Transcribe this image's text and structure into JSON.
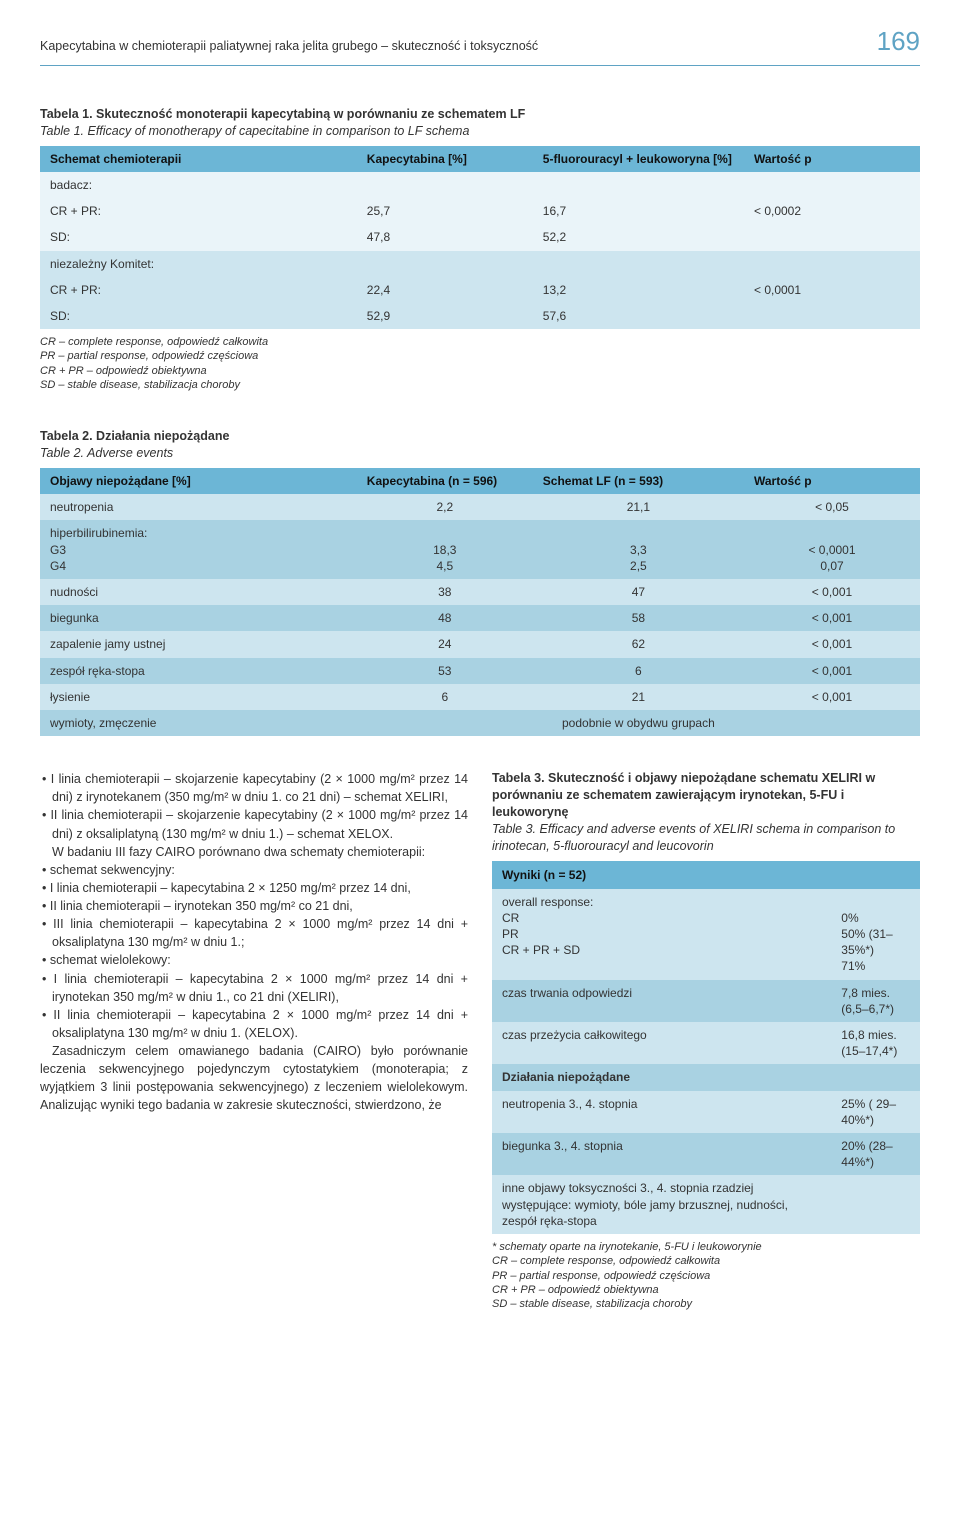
{
  "header": {
    "running_title": "Kapecytabina w chemioterapii paliatywnej raka jelita grubego – skuteczność i toksyczność",
    "page_number": "169"
  },
  "table1": {
    "caption_pl": "Tabela 1. Skuteczność monoterapii kapecytabiną w porównaniu ze schematem LF",
    "caption_en": "Table 1. Efficacy of monotherapy of capecitabine in comparison to LF schema",
    "headers": [
      "Schemat chemioterapii",
      "Kapecytabina [%]",
      "5-fluorouracyl + leukoworyna [%]",
      "Wartość p"
    ],
    "rows": [
      {
        "label": "badacz:",
        "c1": "",
        "c2": "",
        "c3": ""
      },
      {
        "label": "CR + PR:",
        "c1": "25,7",
        "c2": "16,7",
        "c3": "< 0,0002"
      },
      {
        "label": "SD:",
        "c1": "47,8",
        "c2": "52,2",
        "c3": ""
      },
      {
        "label": "niezależny Komitet:",
        "c1": "",
        "c2": "",
        "c3": ""
      },
      {
        "label": "CR + PR:",
        "c1": "22,4",
        "c2": "13,2",
        "c3": "< 0,0001"
      },
      {
        "label": "SD:",
        "c1": "52,9",
        "c2": "57,6",
        "c3": ""
      }
    ],
    "footnotes": [
      "CR – complete response, odpowiedź całkowita",
      "PR – partial response, odpowiedź częściowa",
      "CR + PR – odpowiedź obiektywna",
      "SD – stable disease, stabilizacja choroby"
    ]
  },
  "table2": {
    "caption_pl": "Tabela 2. Działania niepożądane",
    "caption_en": "Table 2. Adverse events",
    "headers": [
      "Objawy niepożądane [%]",
      "Kapecytabina (n = 596)",
      "Schemat LF (n = 593)",
      "Wartość p"
    ],
    "rows": [
      {
        "c0": "neutropenia",
        "c1": "2,2",
        "c2": "21,1",
        "c3": "< 0,05",
        "alt": 0
      },
      {
        "c0": "hiperbilirubinemia:\nG3\nG4",
        "c1": "\n18,3\n4,5",
        "c2": "\n3,3\n2,5",
        "c3": "\n< 0,0001\n0,07",
        "alt": 1
      },
      {
        "c0": "nudności",
        "c1": "38",
        "c2": "47",
        "c3": "< 0,001",
        "alt": 0
      },
      {
        "c0": "biegunka",
        "c1": "48",
        "c2": "58",
        "c3": "< 0,001",
        "alt": 1
      },
      {
        "c0": "zapalenie jamy ustnej",
        "c1": "24",
        "c2": "62",
        "c3": "< 0,001",
        "alt": 0
      },
      {
        "c0": "zespół ręka-stopa",
        "c1": "53",
        "c2": "6",
        "c3": "< 0,001",
        "alt": 1
      },
      {
        "c0": "łysienie",
        "c1": "6",
        "c2": "21",
        "c3": "< 0,001",
        "alt": 0
      },
      {
        "c0": "wymioty, zmęczenie",
        "c1": "podobnie w obydwu grupach",
        "c2": "",
        "c3": "",
        "alt": 1,
        "span": true
      }
    ]
  },
  "body_left": [
    "• I linia chemioterapii – skojarzenie kapecytabiny (2 × 1000 mg/m² przez 14 dni) z irynotekanem (350 mg/m² w dniu 1. co 21 dni) – schemat XELIRI,",
    "• II linia chemioterapii – skojarzenie kapecytabiny (2 × 1000 mg/m² przez 14 dni) z oksaliplatyną (130 mg/m² w dniu 1.) – schemat XELOX.",
    "W badaniu III fazy CAIRO porównano dwa schematy chemioterapii:",
    "• schemat sekwencyjny:",
    "• I linia chemioterapii – kapecytabina 2 × 1250 mg/m² przez 14 dni,",
    "• II linia chemioterapii – irynotekan 350 mg/m² co 21 dni,",
    "• III linia chemioterapii – kapecytabina 2 × 1000 mg/m² przez 14 dni + oksaliplatyna 130 mg/m² w dniu 1.;",
    "• schemat wielolekowy:",
    "• I linia chemioterapii – kapecytabina 2 × 1000 mg/m² przez 14 dni + irynotekan 350 mg/m² w dniu 1., co 21 dni (XELIRI),",
    "• II linia chemioterapii – kapecytabina 2 × 1000 mg/m² przez 14 dni + oksaliplatyna 130 mg/m² w dniu 1. (XELOX).",
    "Zasadniczym celem omawianego badania (CAIRO) było porównanie leczenia sekwencyjnego pojedynczym cytostatykiem (monoterapia; z wyjątkiem 3 linii postępowania sekwencyjnego) z leczeniem wielolekowym. Analizując wyniki tego badania w zakresie skuteczności, stwierdzono, że"
  ],
  "table3": {
    "caption_pl": "Tabela 3. Skuteczność i objawy niepożądane schematu XELIRI w porównaniu ze schematem zawierającym irynotekan, 5-FU i leukoworynę",
    "caption_en": "Table 3. Efficacy and adverse events of XELIRI schema in comparison to irinotecan, 5-fluorouracyl and leucovorin",
    "head": "Wyniki (n = 52)",
    "rows_eff": [
      {
        "k": "overall response:\nCR\nPR\nCR + PR + SD",
        "v": "\n0%\n50% (31–35%*)\n71%"
      },
      {
        "k": "czas trwania odpowiedzi",
        "v": "7,8 mies. (6,5–6,7*)"
      },
      {
        "k": "czas przeżycia całkowitego",
        "v": "16,8 mies. (15–17,4*)"
      }
    ],
    "sec2": "Działania niepożądane",
    "rows_ae": [
      {
        "k": "neutropenia 3., 4. stopnia",
        "v": "25% ( 29–40%*)"
      },
      {
        "k": "biegunka 3., 4. stopnia",
        "v": "20% (28–44%*)"
      },
      {
        "k": "inne objawy toksyczności 3., 4. stopnia rzadziej występujące: wymioty, bóle jamy brzusznej, nudności, zespół ręka-stopa",
        "v": ""
      }
    ],
    "footnotes": [
      "* schematy oparte na irynotekanie, 5-FU i leukoworynie",
      "CR – complete response, odpowiedź całkowita",
      "PR – partial response, odpowiedź częściowa",
      "CR + PR – odpowiedź obiektywna",
      "SD – stable disease, stabilizacja choroby"
    ]
  },
  "colors": {
    "header_blue": "#5fa3c4",
    "th_bg": "#6cb6d6",
    "row_light": "#eaf4f9",
    "row_mid": "#cde5ef",
    "row_dark": "#a9d2e2"
  }
}
